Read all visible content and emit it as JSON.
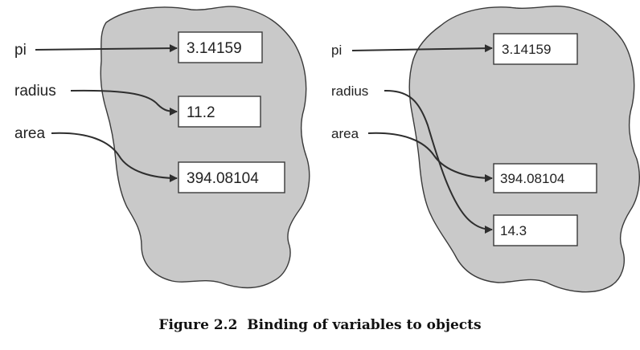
{
  "caption": "Figure 2.2  Binding of variables to objects",
  "left_panel": {
    "variables": [
      "pi",
      "radius",
      "area"
    ],
    "values": [
      "3.14159",
      "11.2",
      "394.08104"
    ]
  },
  "right_panel": {
    "variables": [
      "pi",
      "radius",
      "area"
    ],
    "values": [
      "3.14159",
      "394.08104",
      "14.3"
    ]
  },
  "colors": {
    "memory_region": "#c9c9c9",
    "box": "#ffffff",
    "stroke": "#2e2e2e"
  }
}
